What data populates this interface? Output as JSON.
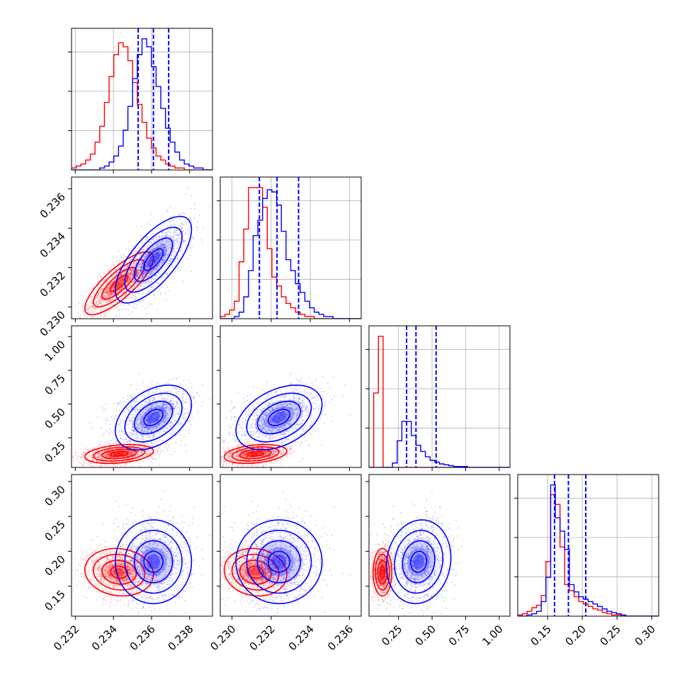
{
  "chart_data": {
    "type": "corner",
    "title": "",
    "parameters": [
      "",
      "",
      "",
      ""
    ],
    "colors": {
      "series_a": "#ff0000",
      "series_b": "#0000ff",
      "grid": "#b0b0b0"
    },
    "grid": true,
    "quantile_lines": {
      "color": "#0000ff",
      "style": "dashed",
      "values": [
        [
          0.2353,
          0.2361,
          0.2369
        ],
        [
          0.2314,
          0.2323,
          0.2334
        ],
        [
          0.31,
          0.38,
          0.53
        ],
        [
          0.16,
          0.18,
          0.205
        ]
      ]
    },
    "axis_ranges": [
      [
        0.2318,
        0.2392
      ],
      [
        0.2294,
        0.2366
      ],
      [
        0.03,
        1.08
      ],
      [
        0.107,
        0.31
      ]
    ],
    "ticks": [
      {
        "values": [
          0.232,
          0.234,
          0.236,
          0.238
        ],
        "labels": [
          "0.232",
          "0.234",
          "0.236",
          "0.238"
        ]
      },
      {
        "values": [
          0.23,
          0.232,
          0.234,
          0.236
        ],
        "labels": [
          "0.230",
          "0.232",
          "0.234",
          "0.236"
        ]
      },
      {
        "values": [
          0.25,
          0.5,
          0.75,
          1.0
        ],
        "labels": [
          "0.25",
          "0.50",
          "0.75",
          "1.00"
        ]
      },
      {
        "values": [
          0.15,
          0.2,
          0.25,
          0.3
        ],
        "labels": [
          "0.15",
          "0.20",
          "0.25",
          "0.30"
        ]
      }
    ],
    "series": [
      {
        "name": "",
        "color": "#ff0000",
        "mean": [
          0.2343,
          0.2312,
          0.13,
          0.17
        ],
        "sd": [
          0.0009,
          0.0008,
          0.035,
          0.017
        ],
        "corr": [
          [
            1,
            0.8,
            0.3,
            -0.1
          ],
          [
            0.8,
            1,
            0.3,
            -0.1
          ],
          [
            0.3,
            0.3,
            1,
            0
          ],
          [
            -0.1,
            -0.1,
            0,
            1
          ]
        ]
      },
      {
        "name": "",
        "color": "#0000ff",
        "mean": [
          0.2361,
          0.2324,
          0.4,
          0.185
        ],
        "sd": [
          0.001,
          0.0011,
          0.12,
          0.03
        ],
        "corr": [
          [
            1,
            0.7,
            0.4,
            0
          ],
          [
            0.7,
            1,
            0.4,
            0
          ],
          [
            0.4,
            0.4,
            1,
            0.1
          ],
          [
            0,
            0,
            0.1,
            1
          ]
        ]
      }
    ],
    "histograms": [
      {
        "bins": [
          0.2318,
          0.2392
        ],
        "series_a": [
          1,
          2,
          3,
          5,
          8,
          14,
          22,
          34,
          47,
          58,
          64,
          62,
          55,
          44,
          33,
          24,
          16,
          11,
          7,
          5,
          3,
          2,
          1,
          1,
          0,
          0,
          0,
          0,
          0,
          0
        ],
        "series_b": [
          0,
          0,
          0,
          0,
          0,
          0,
          1,
          2,
          4,
          7,
          12,
          20,
          32,
          46,
          58,
          66,
          62,
          52,
          42,
          31,
          21,
          14,
          9,
          5,
          3,
          2,
          1,
          1,
          0,
          0
        ]
      },
      {
        "bins": [
          0.2294,
          0.2366
        ],
        "series_a": [
          1,
          2,
          4,
          8,
          26,
          41,
          60,
          60,
          60,
          51,
          32,
          19,
          15,
          10,
          7,
          5,
          3,
          2,
          1,
          1,
          0,
          0,
          0,
          0,
          0,
          0,
          0,
          0,
          0,
          0
        ],
        "series_b": [
          0,
          0,
          0,
          1,
          3,
          10,
          22,
          38,
          45,
          55,
          59,
          58,
          52,
          40,
          27,
          22,
          16,
          12,
          8,
          5,
          3,
          2,
          1,
          1,
          0,
          0,
          0,
          0,
          0,
          0
        ]
      },
      {
        "bins": [
          0.03,
          1.08
        ],
        "series_a": [
          0,
          84,
          148,
          0,
          0,
          0,
          0,
          0,
          0,
          0,
          0,
          0,
          0,
          0,
          0,
          0,
          0,
          0,
          0,
          0,
          0,
          0,
          0,
          0,
          0,
          0,
          0,
          0,
          0,
          0
        ],
        "series_b": [
          0,
          0,
          0,
          0,
          0,
          5,
          30,
          52,
          52,
          36,
          25,
          18,
          12,
          8,
          6,
          4,
          3,
          2,
          1,
          1,
          1,
          0,
          0,
          0,
          0,
          0,
          0,
          0,
          0,
          0
        ]
      },
      {
        "bins": [
          0.107,
          0.31
        ],
        "series_a": [
          1,
          2,
          4,
          7,
          9,
          17,
          45,
          100,
          92,
          57,
          26,
          21,
          16,
          12,
          10,
          8,
          6,
          5,
          3,
          2,
          1,
          1,
          0,
          0,
          0,
          0,
          0,
          0,
          0,
          0
        ],
        "series_b": [
          0,
          0,
          1,
          2,
          4,
          12,
          32,
          108,
          81,
          70,
          55,
          26,
          20,
          16,
          14,
          12,
          10,
          8,
          6,
          4,
          3,
          2,
          1,
          0,
          0,
          0,
          0,
          0,
          0,
          0
        ]
      }
    ]
  }
}
